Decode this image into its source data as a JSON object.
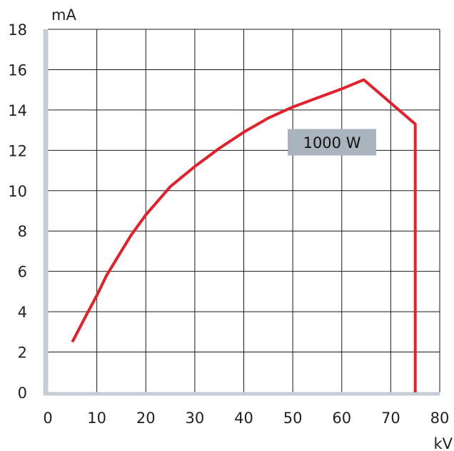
{
  "chart_data": {
    "type": "line",
    "title": "",
    "xlabel": "kV",
    "ylabel": "mA",
    "xlim": [
      0,
      80
    ],
    "ylim": [
      0,
      18
    ],
    "x_ticks": [
      "0",
      "10",
      "20",
      "30",
      "40",
      "50",
      "60",
      "70",
      "80"
    ],
    "y_ticks": [
      "0",
      "2",
      "4",
      "6",
      "8",
      "10",
      "12",
      "14",
      "16",
      "18"
    ],
    "grid": true,
    "axis_color": "#c5cdd6",
    "series": [
      {
        "color": "#e3212b",
        "x": [
          5,
          8,
          10,
          12,
          15,
          17,
          20,
          25,
          30,
          35,
          40,
          45,
          50,
          55,
          60,
          64.5,
          75,
          75
        ],
        "y": [
          2.5,
          3.9,
          4.8,
          5.8,
          7.0,
          7.8,
          8.8,
          10.2,
          11.2,
          12.1,
          12.9,
          13.6,
          14.15,
          14.6,
          15.05,
          15.5,
          13.3,
          0
        ]
      }
    ],
    "annotations": [
      {
        "text": "1000 W",
        "x": 58,
        "y": 12.4,
        "background": "#a9b4bf"
      }
    ]
  }
}
